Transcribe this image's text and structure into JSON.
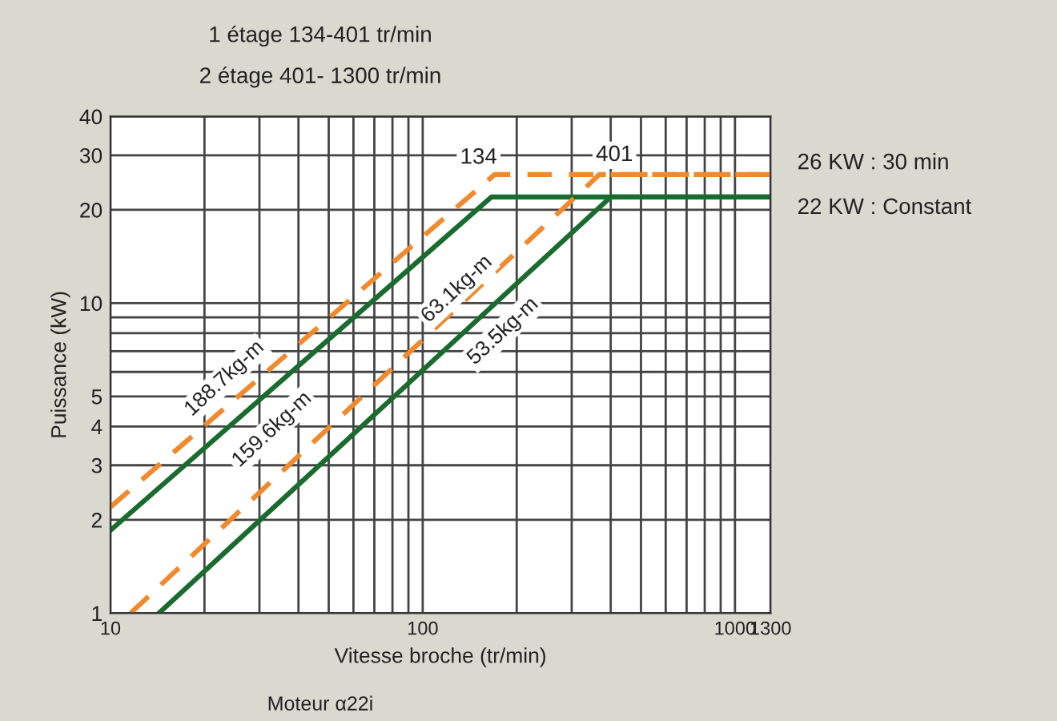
{
  "chart_data": {
    "type": "line",
    "title": "1 étage 134-401 tr/min",
    "subtitle": "2 étage 401- 1300 tr/min",
    "xlabel": "Vitesse broche (tr/min)",
    "ylabel": "Puissance (kW)",
    "log": "xy",
    "grid": true,
    "xlim": [
      10,
      1300
    ],
    "ylim": [
      1,
      40
    ],
    "xticks": [
      10,
      {
        "value": 20,
        "label": null
      },
      {
        "value": 30,
        "label": null
      },
      {
        "value": 40,
        "label": null
      },
      {
        "value": 50,
        "label": null
      },
      {
        "value": 60,
        "label": null
      },
      {
        "value": 70,
        "label": null
      },
      {
        "value": 80,
        "label": null
      },
      {
        "value": 90,
        "label": null
      },
      100,
      {
        "value": 200,
        "label": null
      },
      {
        "value": 300,
        "label": null
      },
      {
        "value": 400,
        "label": null
      },
      {
        "value": 500,
        "label": null
      },
      {
        "value": 600,
        "label": null
      },
      {
        "value": 700,
        "label": null
      },
      {
        "value": 800,
        "label": null
      },
      {
        "value": 900,
        "label": null
      },
      1000,
      1300
    ],
    "yticks": [
      1,
      2,
      3,
      4,
      5,
      {
        "value": 6,
        "label": null
      },
      {
        "value": 7,
        "label": null
      },
      {
        "value": 8,
        "label": null
      },
      {
        "value": 9,
        "label": null
      },
      10,
      20,
      30,
      40
    ],
    "series": [
      {
        "color": "#f08a2c",
        "line_style": "dashed",
        "x": [
          10,
          170,
          1300
        ],
        "values": [
          2.2,
          26,
          26
        ]
      },
      {
        "color": "#1a6b2e",
        "line_style": "solid",
        "x": [
          10,
          166,
          1300
        ],
        "values": [
          1.85,
          22,
          22
        ]
      },
      {
        "color": "#f08a2c",
        "line_style": "dashed",
        "x": [
          11.6,
          368,
          1300
        ],
        "values": [
          1,
          26,
          26
        ]
      },
      {
        "color": "#1a6b2e",
        "line_style": "solid",
        "x": [
          14.3,
          400,
          1300
        ],
        "values": [
          1,
          22,
          22
        ]
      }
    ],
    "annotations": [
      {
        "text": "134",
        "x": 151,
        "y": 29.4
      },
      {
        "text": "401",
        "x": 411,
        "y": 30
      },
      "188.7kg-m",
      "159.6kg-m",
      "63.1kg-m",
      "53.5kg-m",
      {
        "text": "26 KW : 30 min",
        "x": 1300,
        "y": 26
      },
      {
        "text": "22 KW : Constant",
        "x": 1300,
        "y": 22
      },
      "Moteur α22i"
    ]
  }
}
